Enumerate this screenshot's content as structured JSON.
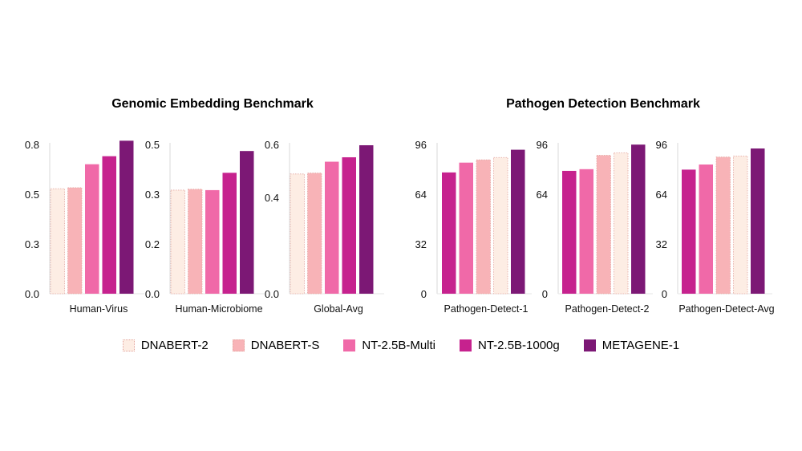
{
  "group_titles": [
    "Genomic Embedding Benchmark",
    "Pathogen Detection Benchmark"
  ],
  "series_colors": {
    "DNABERT-2": "#FDEDE4",
    "DNABERT-S": "#F8B3B7",
    "NT-2.5B-Multi": "#F069A8",
    "NT-2.5B-1000g": "#C6228E",
    "METAGENE-1": "#7C1875"
  },
  "dashed_series": [
    "DNABERT-2",
    "DNABERT-S"
  ],
  "legend": [
    "DNABERT-2",
    "DNABERT-S",
    "NT-2.5B-Multi",
    "NT-2.5B-1000g",
    "METAGENE-1"
  ],
  "chart_data": [
    {
      "type": "bar",
      "group": "Genomic Embedding Benchmark",
      "xlabel": "Human-Virus",
      "ylim": [
        0,
        0.8
      ],
      "ticks": [
        "0.0",
        "0.3",
        "0.5",
        "0.8"
      ],
      "tick_values": [
        0,
        0.2667,
        0.5333,
        0.8
      ],
      "series": [
        {
          "name": "DNABERT-2",
          "value": 0.563
        },
        {
          "name": "DNABERT-S",
          "value": 0.5683
        },
        {
          "name": "NT-2.5B-Multi",
          "value": 0.694
        },
        {
          "name": "NT-2.5B-1000g",
          "value": 0.737
        },
        {
          "name": "METAGENE-1",
          "value": 0.82
        }
      ]
    },
    {
      "type": "bar",
      "group": "Genomic Embedding Benchmark",
      "xlabel": "Human-Microbiome",
      "ylim": [
        0,
        0.5
      ],
      "ticks": [
        "0.0",
        "0.2",
        "0.3",
        "0.5"
      ],
      "tick_values": [
        0,
        0.1667,
        0.3333,
        0.5
      ],
      "series": [
        {
          "name": "DNABERT-2",
          "value": 0.347
        },
        {
          "name": "DNABERT-S",
          "value": 0.35
        },
        {
          "name": "NT-2.5B-Multi",
          "value": 0.347
        },
        {
          "name": "NT-2.5B-1000g",
          "value": 0.405
        },
        {
          "name": "METAGENE-1",
          "value": 0.478
        }
      ]
    },
    {
      "type": "bar",
      "group": "Genomic Embedding Benchmark",
      "xlabel": "Global-Avg",
      "ylim": [
        0,
        0.6
      ],
      "ticks": [
        "0.0",
        "0.4",
        "0.6"
      ],
      "tick_values": [
        0,
        0.3878,
        0.6
      ],
      "series": [
        {
          "name": "DNABERT-2",
          "value": 0.4813
        },
        {
          "name": "DNABERT-S",
          "value": 0.4848
        },
        {
          "name": "NT-2.5B-Multi",
          "value": 0.5306
        },
        {
          "name": "NT-2.5B-1000g",
          "value": 0.5484
        },
        {
          "name": "METAGENE-1",
          "value": 0.5968
        }
      ]
    },
    {
      "type": "bar",
      "group": "Pathogen Detection Benchmark",
      "xlabel": "Pathogen-Detect-1",
      "ylim": [
        0,
        96
      ],
      "ticks": [
        "0",
        "32",
        "64",
        "96"
      ],
      "tick_values": [
        0,
        32,
        64,
        96
      ],
      "series": [
        {
          "name": "NT-2.5B-1000g",
          "value": 78.0
        },
        {
          "name": "NT-2.5B-Multi",
          "value": 84.3
        },
        {
          "name": "DNABERT-S",
          "value": 86.1
        },
        {
          "name": "DNABERT-2",
          "value": 87.6
        },
        {
          "name": "METAGENE-1",
          "value": 92.6
        }
      ]
    },
    {
      "type": "bar",
      "group": "Pathogen Detection Benchmark",
      "xlabel": "Pathogen-Detect-2",
      "ylim": [
        0,
        96
      ],
      "ticks": [
        "0",
        "64",
        "96"
      ],
      "tick_values": [
        0,
        64,
        96
      ],
      "series": [
        {
          "name": "NT-2.5B-1000g",
          "value": 79.0
        },
        {
          "name": "NT-2.5B-Multi",
          "value": 80.1
        },
        {
          "name": "DNABERT-S",
          "value": 89.0
        },
        {
          "name": "DNABERT-2",
          "value": 90.6
        },
        {
          "name": "METAGENE-1",
          "value": 95.9
        }
      ]
    },
    {
      "type": "bar",
      "group": "Pathogen Detection Benchmark",
      "xlabel": "Pathogen-Detect-Avg",
      "ylim": [
        0,
        96
      ],
      "ticks": [
        "0",
        "32",
        "64",
        "96"
      ],
      "tick_values": [
        0,
        32,
        64,
        96
      ],
      "series": [
        {
          "name": "NT-2.5B-1000g",
          "value": 79.8
        },
        {
          "name": "NT-2.5B-Multi",
          "value": 83.1
        },
        {
          "name": "DNABERT-S",
          "value": 87.9
        },
        {
          "name": "DNABERT-2",
          "value": 88.6
        },
        {
          "name": "METAGENE-1",
          "value": 93.4
        }
      ]
    }
  ]
}
